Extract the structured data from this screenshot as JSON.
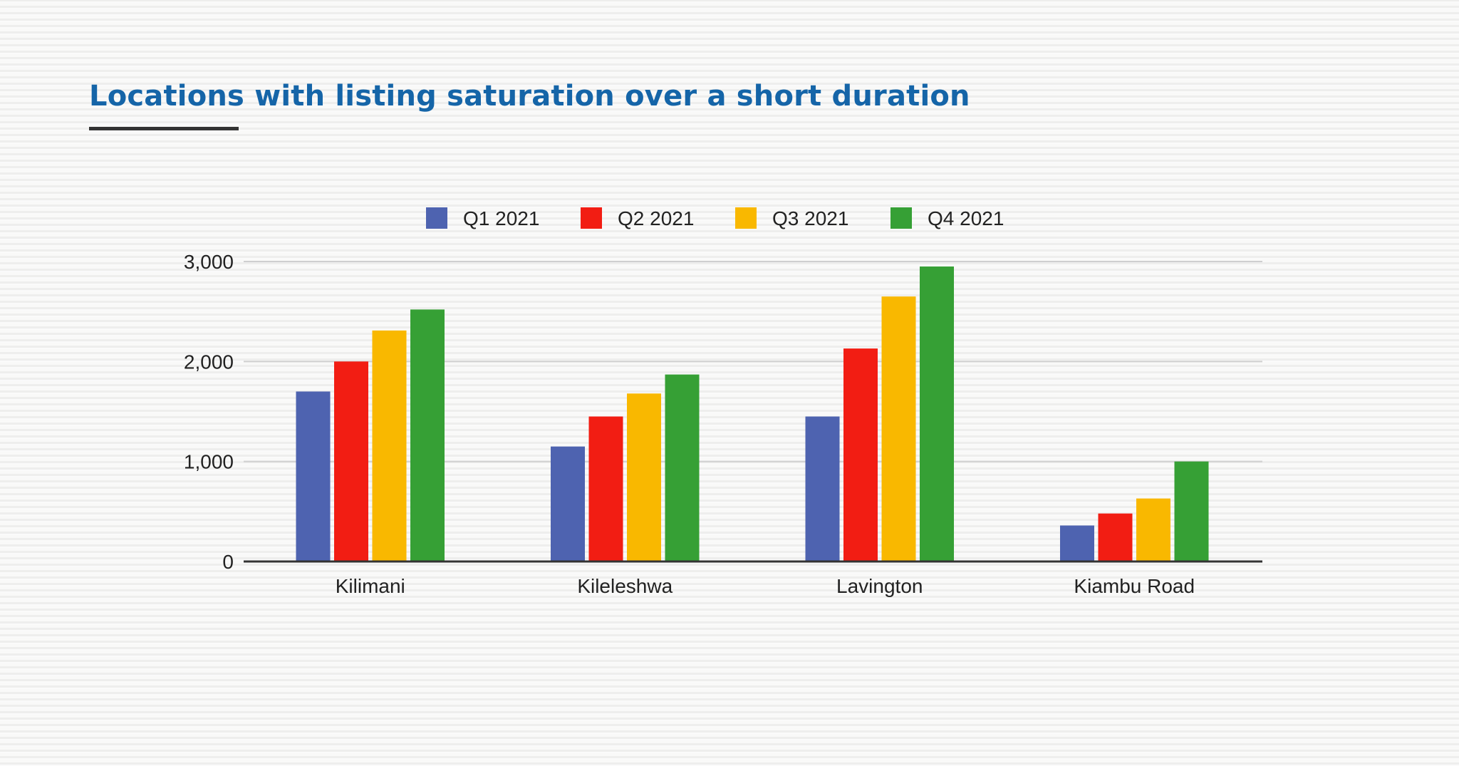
{
  "chart_data": {
    "type": "bar",
    "title": "Locations with listing saturation over a short duration",
    "xlabel": "",
    "ylabel": "",
    "ylim": [
      0,
      3000
    ],
    "yticks": [
      "0",
      "1,000",
      "2,000",
      "3,000"
    ],
    "grid": true,
    "legend_position": "top",
    "categories": [
      "Kilimani",
      "Kileleshwa",
      "Lavington",
      "Kiambu Road"
    ],
    "series": [
      {
        "name": "Q1 2021",
        "color": "#4e63b0",
        "values": [
          1700,
          1150,
          1450,
          360
        ]
      },
      {
        "name": "Q2 2021",
        "color": "#f21d13",
        "values": [
          2000,
          1450,
          2130,
          480
        ]
      },
      {
        "name": "Q3 2021",
        "color": "#f9b800",
        "values": [
          2310,
          1680,
          2650,
          630
        ]
      },
      {
        "name": "Q4 2021",
        "color": "#36a035",
        "values": [
          2520,
          1870,
          2950,
          1000
        ]
      }
    ]
  }
}
